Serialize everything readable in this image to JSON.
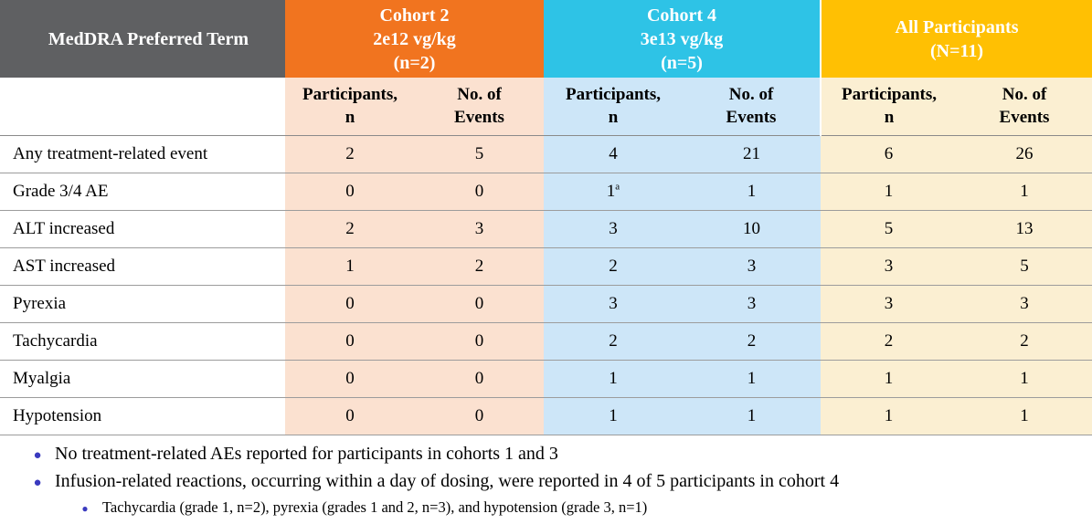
{
  "table": {
    "term_header": "MedDRA Preferred Term",
    "groups": [
      {
        "title": "Cohort 2\n2e12 vg/kg\n(n=2)"
      },
      {
        "title": "Cohort 4\n3e13 vg/kg\n(n=5)"
      },
      {
        "title": "All Participants\n(N=11)"
      }
    ],
    "subheader": {
      "participants": "Participants,\nn",
      "events": "No. of\nEvents"
    },
    "rows": [
      {
        "term": "Any treatment-related event",
        "values": [
          "2",
          "5",
          "4",
          "21",
          "6",
          "26"
        ]
      },
      {
        "term": "Grade 3/4 AE",
        "values": [
          "0",
          "0",
          {
            "text": "1",
            "sup": "a"
          },
          "1",
          "1",
          "1"
        ]
      },
      {
        "term": "ALT increased",
        "values": [
          "2",
          "3",
          "3",
          "10",
          "5",
          "13"
        ]
      },
      {
        "term": "AST increased",
        "values": [
          "1",
          "2",
          "2",
          "3",
          "3",
          "5"
        ]
      },
      {
        "term": "Pyrexia",
        "values": [
          "0",
          "0",
          "3",
          "3",
          "3",
          "3"
        ]
      },
      {
        "term": "Tachycardia",
        "values": [
          "0",
          "0",
          "2",
          "2",
          "2",
          "2"
        ]
      },
      {
        "term": "Myalgia",
        "values": [
          "0",
          "0",
          "1",
          "1",
          "1",
          "1"
        ]
      },
      {
        "term": "Hypotension",
        "values": [
          "0",
          "0",
          "1",
          "1",
          "1",
          "1"
        ]
      }
    ]
  },
  "colors": {
    "header_gray": "#5F6062",
    "cohort2": "#F1741F",
    "cohort4": "#2EC3E6",
    "all": "#FFC003",
    "cohort2_tint": "#FBE1D0",
    "cohort4_tint": "#CDE6F8",
    "all_tint": "#FBEFD2",
    "bullet_blue": "#3A3ABF"
  },
  "footnotes": {
    "bullets": [
      "No treatment-related AEs reported for participants in cohorts 1 and 3",
      "Infusion-related reactions, occurring within a day of dosing, were reported in 4 of 5 participants in cohort 4"
    ],
    "sub_bullet": "Tachycardia (grade 1, n=2), pyrexia (grades 1 and 2, n=3), and hypotension (grade 3, n=1)"
  }
}
